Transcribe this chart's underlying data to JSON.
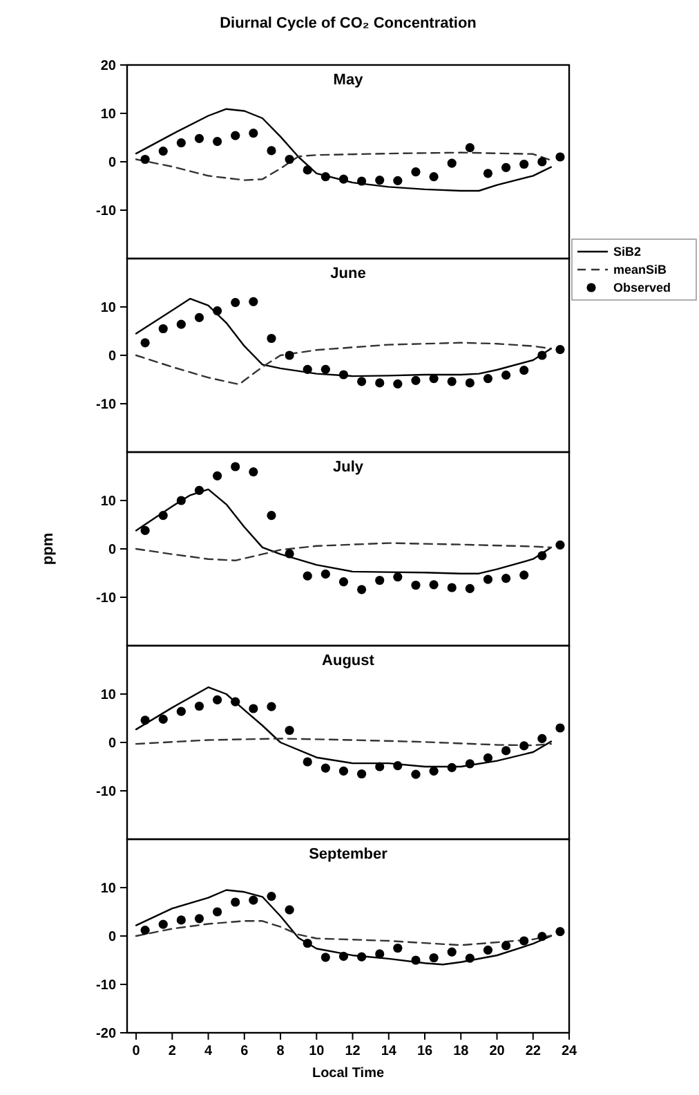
{
  "chart_data": [
    {
      "type": "line",
      "title": "May",
      "annotations": [
        "Diurnal Cycle of CO₂ Concentration"
      ],
      "xlim": [
        -0.5,
        24
      ],
      "ylim": [
        -20,
        20
      ],
      "yticks": [
        -10,
        0,
        10,
        20
      ],
      "tick_labels": "y",
      "legend": "right",
      "series": [
        {
          "name": "SiB2",
          "color": "#000000",
          "line_style": "solid",
          "x": [
            0,
            2,
            4,
            5,
            6,
            7,
            8,
            9,
            10,
            12,
            14,
            16,
            18,
            19,
            20,
            22,
            23
          ],
          "values": [
            1.7,
            5.7,
            9.5,
            10.9,
            10.5,
            9,
            5.2,
            1,
            -2.4,
            -4.3,
            -5.2,
            -5.7,
            -6,
            -6,
            -4.8,
            -2.9,
            -1.1
          ]
        },
        {
          "name": "meanSiB",
          "color": "#333333",
          "line_style": "dashed",
          "x": [
            0,
            2,
            4,
            6,
            7,
            8,
            9,
            10,
            14,
            18,
            22,
            23
          ],
          "values": [
            0.5,
            -1,
            -2.9,
            -3.8,
            -3.6,
            -1.4,
            1.1,
            1.4,
            1.7,
            1.9,
            1.6,
            0.3
          ]
        },
        {
          "name": "Observed",
          "type": "scatter",
          "color": "#000000",
          "marker": "circle",
          "x": [
            0.5,
            1.5,
            2.5,
            3.5,
            4.5,
            5.5,
            6.5,
            7.5,
            8.5,
            9.5,
            10.5,
            11.5,
            12.5,
            13.5,
            14.5,
            15.5,
            16.5,
            17.5,
            18.5,
            19.5,
            20.5,
            21.5,
            22.5,
            23.5
          ],
          "values": [
            0.5,
            2.2,
            3.9,
            4.8,
            4.2,
            5.4,
            5.9,
            2.3,
            0.5,
            -1.7,
            -3.1,
            -3.6,
            -4,
            -3.8,
            -3.9,
            -2.1,
            -3.1,
            -0.3,
            2.9,
            -2.4,
            -1.2,
            -0.5,
            0,
            1
          ]
        }
      ]
    },
    {
      "type": "line",
      "title": "June",
      "xlim": [
        -0.5,
        24
      ],
      "ylim": [
        -20,
        20
      ],
      "yticks": [
        -10,
        0,
        10
      ],
      "tick_labels": "y",
      "series": [
        {
          "color": "#000000",
          "line_style": "solid",
          "x": [
            0,
            3,
            4,
            5,
            6,
            7,
            8,
            10,
            12,
            14,
            16,
            18,
            19,
            20,
            22,
            23
          ],
          "values": [
            4.5,
            11.7,
            10.3,
            6.7,
            1.9,
            -1.9,
            -2.7,
            -3.8,
            -4.3,
            -4.2,
            -4,
            -4,
            -3.8,
            -3,
            -1,
            1.4
          ]
        },
        {
          "color": "#333333",
          "line_style": "dashed",
          "x": [
            0,
            2,
            4,
            5.7,
            7,
            8,
            10,
            14,
            18,
            20,
            22,
            23
          ],
          "values": [
            0,
            -2.4,
            -4.6,
            -6,
            -2.4,
            0,
            1.1,
            2.2,
            2.6,
            2.4,
            1.9,
            1.4
          ]
        },
        {
          "type": "scatter",
          "color": "#000000",
          "marker": "circle",
          "x": [
            0.5,
            1.5,
            2.5,
            3.5,
            4.5,
            5.5,
            6.5,
            7.5,
            8.5,
            9.5,
            10.5,
            11.5,
            12.5,
            13.5,
            14.5,
            15.5,
            16.5,
            17.5,
            18.5,
            19.5,
            20.5,
            21.5,
            22.5,
            23.5
          ],
          "values": [
            2.6,
            5.5,
            6.4,
            7.8,
            9.2,
            10.9,
            11.1,
            3.5,
            0,
            -2.9,
            -2.9,
            -4,
            -5.4,
            -5.7,
            -5.9,
            -5.2,
            -4.8,
            -5.4,
            -5.7,
            -4.8,
            -4.1,
            -3.1,
            0,
            1.2
          ]
        }
      ]
    },
    {
      "type": "line",
      "title": "July",
      "ylabel": "ppm",
      "xlim": [
        -0.5,
        24
      ],
      "ylim": [
        -20,
        20
      ],
      "yticks": [
        -10,
        0,
        10
      ],
      "tick_labels": "y",
      "series": [
        {
          "color": "#000000",
          "line_style": "solid",
          "x": [
            0,
            2,
            3,
            4,
            5,
            6,
            7,
            8,
            10,
            12,
            14,
            16,
            18,
            19,
            20,
            22,
            23
          ],
          "values": [
            3.8,
            8.8,
            11.1,
            12.3,
            9.2,
            4.5,
            0.3,
            -1.1,
            -3.3,
            -4.7,
            -4.8,
            -4.9,
            -5.1,
            -5.1,
            -4.2,
            -2.1,
            0.3
          ]
        },
        {
          "color": "#333333",
          "line_style": "dashed",
          "x": [
            0,
            2,
            4,
            5.5,
            7,
            8,
            10,
            14,
            18,
            22,
            23
          ],
          "values": [
            0,
            -1.1,
            -2.1,
            -2.4,
            -1.1,
            -0.2,
            0.6,
            1.2,
            0.9,
            0.5,
            0.3
          ]
        },
        {
          "type": "scatter",
          "color": "#000000",
          "marker": "circle",
          "x": [
            0.5,
            1.5,
            2.5,
            3.5,
            4.5,
            5.5,
            6.5,
            7.5,
            8.5,
            9.5,
            10.5,
            11.5,
            12.5,
            13.5,
            14.5,
            15.5,
            16.5,
            17.5,
            18.5,
            19.5,
            20.5,
            21.5,
            22.5,
            23.5
          ],
          "values": [
            3.8,
            6.9,
            10,
            12.1,
            15.1,
            17,
            15.9,
            6.9,
            -1,
            -5.6,
            -5.2,
            -6.8,
            -8.4,
            -6.5,
            -5.8,
            -7.5,
            -7.4,
            -8,
            -8.2,
            -6.3,
            -6.1,
            -5.4,
            -1.4,
            0.8
          ]
        }
      ]
    },
    {
      "type": "line",
      "title": "August",
      "xlim": [
        -0.5,
        24
      ],
      "ylim": [
        -20,
        20
      ],
      "yticks": [
        -10,
        0,
        10
      ],
      "tick_labels": "y",
      "series": [
        {
          "color": "#000000",
          "line_style": "solid",
          "x": [
            0,
            2,
            4,
            5,
            6,
            7,
            8,
            10,
            12,
            14,
            16,
            18,
            20,
            22,
            23
          ],
          "values": [
            2.7,
            7.2,
            11.4,
            10,
            6.7,
            3.5,
            0,
            -3.1,
            -4.3,
            -4.3,
            -5,
            -5,
            -3.8,
            -2,
            0.2
          ]
        },
        {
          "color": "#333333",
          "line_style": "dashed",
          "x": [
            0,
            4,
            8,
            12,
            16,
            20,
            22,
            23
          ],
          "values": [
            -0.3,
            0.5,
            0.8,
            0.5,
            0.1,
            -0.5,
            -0.6,
            -0.3
          ]
        },
        {
          "type": "scatter",
          "color": "#000000",
          "marker": "circle",
          "x": [
            0.5,
            1.5,
            2.5,
            3.5,
            4.5,
            5.5,
            6.5,
            7.5,
            8.5,
            9.5,
            10.5,
            11.5,
            12.5,
            13.5,
            14.5,
            15.5,
            16.5,
            17.5,
            18.5,
            19.5,
            20.5,
            21.5,
            22.5,
            23.5
          ],
          "values": [
            4.6,
            4.8,
            6.4,
            7.5,
            8.8,
            8.4,
            7,
            7.4,
            2.5,
            -4,
            -5.3,
            -5.9,
            -6.5,
            -5,
            -4.8,
            -6.6,
            -5.9,
            -5.2,
            -4.4,
            -3.2,
            -1.7,
            -0.7,
            0.8,
            3
          ]
        }
      ]
    },
    {
      "type": "line",
      "title": "September",
      "xlabel": "Local Time",
      "xlim": [
        -0.5,
        24
      ],
      "ylim": [
        -20,
        20
      ],
      "xticks": [
        0,
        2,
        4,
        6,
        8,
        10,
        12,
        14,
        16,
        18,
        20,
        22,
        24
      ],
      "yticks": [
        -20,
        -10,
        0,
        10
      ],
      "series": [
        {
          "color": "#000000",
          "line_style": "solid",
          "x": [
            0,
            2,
            4,
            5,
            6,
            7,
            8,
            9,
            10,
            12,
            14,
            16,
            17,
            18,
            20,
            22,
            23
          ],
          "values": [
            2.2,
            5.7,
            7.9,
            9.5,
            9.1,
            8.1,
            4.1,
            -0.4,
            -2.6,
            -4,
            -4.7,
            -5.6,
            -5.9,
            -5.4,
            -4,
            -1.6,
            0
          ]
        },
        {
          "color": "#333333",
          "line_style": "dashed",
          "x": [
            0,
            2,
            4,
            6,
            7,
            8,
            9,
            10,
            14,
            18,
            22,
            23
          ],
          "values": [
            0,
            1.5,
            2.5,
            3.1,
            3.1,
            1.9,
            0.3,
            -0.5,
            -1,
            -1.9,
            -0.7,
            0.1
          ]
        },
        {
          "type": "scatter",
          "color": "#000000",
          "marker": "circle",
          "x": [
            0.5,
            1.5,
            2.5,
            3.5,
            4.5,
            5.5,
            6.5,
            7.5,
            8.5,
            9.5,
            10.5,
            11.5,
            12.5,
            13.5,
            14.5,
            15.5,
            16.5,
            17.5,
            18.5,
            19.5,
            20.5,
            21.5,
            22.5,
            23.5
          ],
          "values": [
            1.2,
            2.4,
            3.3,
            3.6,
            5,
            7,
            7.4,
            8.2,
            5.4,
            -1.5,
            -4.4,
            -4.2,
            -4.3,
            -3.7,
            -2.5,
            -5,
            -4.5,
            -3.3,
            -4.6,
            -2.9,
            -2,
            -1,
            -0.1,
            0.9
          ]
        }
      ]
    }
  ]
}
